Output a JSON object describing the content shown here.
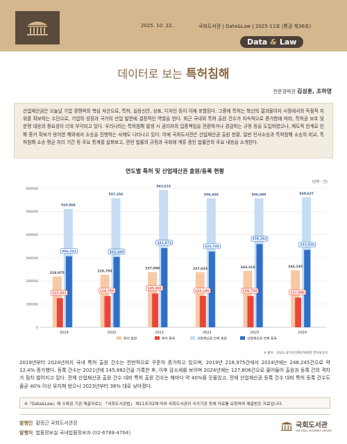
{
  "header": {
    "date": "2025. 10. 22.",
    "publication": "국회도서관 | Data&Law | 2025-11호 (통권 제36호)",
    "badge_left": "Data",
    "badge_amp": "&",
    "badge_right": "Law",
    "brand_color": "#d4b78e"
  },
  "title": {
    "prefix": "데이터로 보는 ",
    "bold": "특허침해"
  },
  "authors": {
    "role": "전문경력관",
    "names": "김성훈, 조하영"
  },
  "intro": "산업재산권은 오늘날 기업 경쟁력의 핵심 자산으로, 특허, 실용신안, 상표, 디자인 등이 이에 포함된다. 그중에 특허는 혁신의 결과물이자 시장에서의 독점적 지위를 확보하는 수단으로, 기업의 성장과 국가의 산업 발전에 결정적인 역할을 한다. 최근 국내외 특허 출원 건수가 지속적으로 증가함에 따라, 특허권 보호 및 분쟁 대응의 중요성이 더욱 부각되고 있다. 우리나라는 특허침해 발생 시 권리자의 입증책임을 전환하거나 경감하는 규정 등을 도입하였으나, 제도적 한계로 인해 증거 확보가 용이한 해외에서 소송을 진행하는 사례도 나타나고 있다. 이에 국회도서관은 산업재산권 출원 현황, 일반 민사소송과 특허침해 소송의 비교, 특허침해 소송 평균 처리 기간 등 주요 통계를 살펴보고, 관련 법률의 규정과 국회에 계류 중인 법률안의 주요 내용을 소개한다.",
  "chart_data": {
    "type": "bar",
    "title": "연도별 특허 및 산업재산권 출원/등록 현황",
    "unit": "(단위 : 건)",
    "source": "※ 출처 : 2024 국가지식재산위원회 연차보고서",
    "categories": [
      "2019",
      "2020",
      "2021",
      "2022",
      "2023",
      "2024"
    ],
    "ylim": [
      0,
      600000
    ],
    "yticks": [
      0,
      100000,
      200000,
      300000,
      400000,
      500000,
      600000
    ],
    "ytick_labels": [
      "0",
      "100000",
      "200000",
      "300000",
      "400000",
      "500000",
      "600000"
    ],
    "series": [
      {
        "name": "특허 출원",
        "color": "#f7c9a4",
        "values": [
          218975,
          226759,
          237998,
          237633,
          243310,
          246245
        ],
        "labels": [
          "218,975",
          "226,759",
          "237,998",
          "237,633",
          "243,310",
          "246,245"
        ]
      },
      {
        "name": "특허 등록",
        "color": "#e8463a",
        "values": [
          125661,
          134766,
          145882,
          135180,
          134734,
          127806
        ],
        "labels": [
          "125,661",
          "134,766",
          "145,882",
          "135,180",
          "134,734",
          "127,806"
        ]
      },
      {
        "name": "산업재산권 전체 출원",
        "color": "#c5ddf2",
        "values": [
          510968,
          557256,
          592615,
          556436,
          556600,
          560627
        ],
        "labels": [
          "510,968",
          "557,256",
          "592,615",
          "556,436",
          "556,600",
          "560,627"
        ]
      },
      {
        "name": "산업재산권 전체 등록",
        "color": "#2f6fc7",
        "values": [
          306522,
          303609,
          341873,
          326740,
          359263,
          333926
        ],
        "labels": [
          "306,522",
          "303,609",
          "341,873",
          "326,740",
          "359,263",
          "333,926"
        ]
      }
    ]
  },
  "body_text": "2019년부터 2024년까지 국내 특허 출원 건수는 전반적으로 꾸준히 증가하고 있으며, 2019년 218,975건에서 2024년에는 246,245건으로 약 12.4% 증가했다. 등록 건수는 2021년에 145,882건을 기록한 후, 이후 감소세를 보이며 2024년에는 127,806건으로 줄어들어 출원과 등록 간의 격차가 점차 벌어지고 있다. 전체 산업재산권 출원 건수 대비 특허 출원 건수는 해마다 약 40%를 웃돌았고, 전체 산업재산권 등록 건수 대비 특허 등록 건수도 줄곧 40% 이상 유지해 왔으나 2023년부터 38% 대로 낮아졌다.",
  "note": "※『Data&Law』에 수록된 기관 제출자료는 「국회도서관법」 제11조의2에 따라 국회도서관이 국가기관 등에 자료를 요청하여 제출받은 자료입니다.",
  "footer": {
    "issuer_label": "발행인",
    "issuer": "황정근 국회도서관장",
    "publisher_label": "발행처",
    "publisher": "법률정보실 국내법률정보과 (02-6788-4764)",
    "logo_name": "국회도서관",
    "logo_sub": "NATIONAL ASSEMBLY LIBRARY"
  }
}
